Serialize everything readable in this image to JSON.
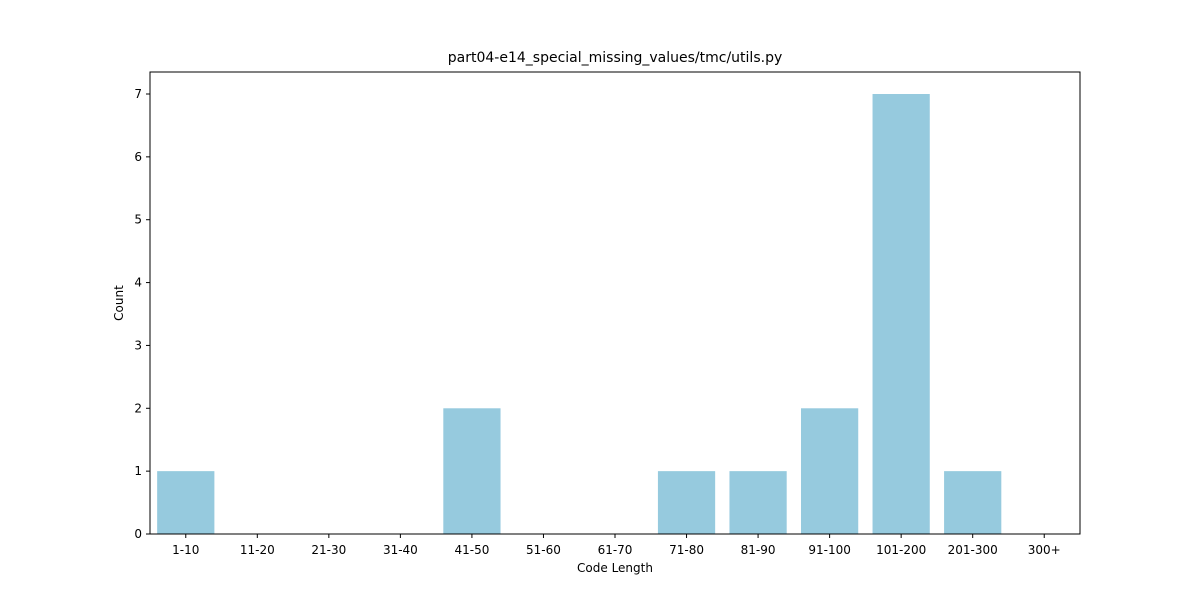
{
  "chart_data": {
    "type": "bar",
    "title": "part04-e14_special_missing_values/tmc/utils.py",
    "xlabel": "Code Length",
    "ylabel": "Count",
    "categories": [
      "1-10",
      "11-20",
      "21-30",
      "31-40",
      "41-50",
      "51-60",
      "61-70",
      "71-80",
      "81-90",
      "91-100",
      "101-200",
      "201-300",
      "300+"
    ],
    "values": [
      1,
      0,
      0,
      0,
      2,
      0,
      0,
      1,
      1,
      2,
      7,
      1,
      0
    ],
    "ylim": [
      0,
      7.35
    ],
    "yticks": [
      0,
      1,
      2,
      3,
      4,
      5,
      6,
      7
    ],
    "bar_color": "#96cade",
    "grid": false,
    "legend": "none"
  }
}
